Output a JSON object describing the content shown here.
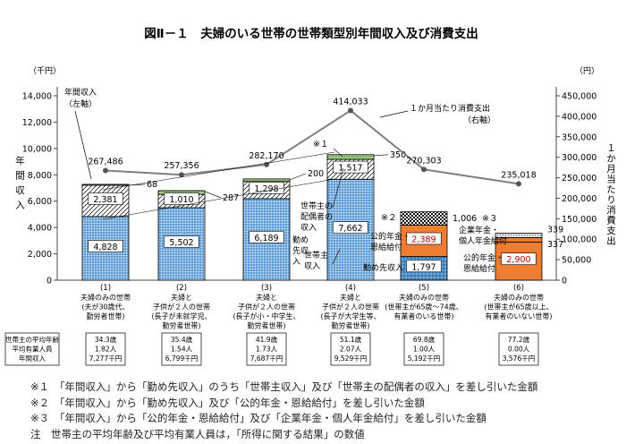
{
  "chart_data": {
    "type": "bar",
    "title": "図Ⅱ－１　夫婦のいる世帯の世帯類型別年間収入及び消費支出",
    "left_axis": {
      "unit": "（千円）",
      "label": "年間収入",
      "ticks": [
        "0",
        "2,000",
        "4,000",
        "6,000",
        "8,000",
        "10,000",
        "12,000",
        "14,000"
      ],
      "ylim": [
        0,
        14000
      ]
    },
    "right_axis": {
      "unit": "（円）",
      "label": "１か月当たり消費支出",
      "ticks": [
        "0",
        "50,000",
        "100,000",
        "150,000",
        "200,000",
        "250,000",
        "300,000",
        "350,000",
        "400,000",
        "450,000"
      ],
      "ylim": [
        0,
        450000
      ]
    },
    "categories": [
      {
        "num": "(1)",
        "lines": [
          "夫婦のみの世帯",
          "(夫が30歳代、",
          "勤労者世帯)"
        ]
      },
      {
        "num": "(2)",
        "lines": [
          "夫婦と",
          "子供が２人の世帯",
          "(長子が未就学児、",
          "勤労者世帯)"
        ]
      },
      {
        "num": "(3)",
        "lines": [
          "夫婦と",
          "子供が２人の世帯",
          "(長子が小・中学生、",
          "勤労者世帯)"
        ]
      },
      {
        "num": "(4)",
        "lines": [
          "夫婦と",
          "子供が２人の世帯",
          "(長子が大学生等、",
          "勤労者世帯)"
        ]
      },
      {
        "num": "(5)",
        "lines": [
          "夫婦のみの世帯",
          "(世帯主が65歳～74歳、",
          "有業者のいる世帯)"
        ]
      },
      {
        "num": "(6)",
        "lines": [
          "夫婦のみの世帯",
          "(世帯主が65歳以上、",
          "有業者のいない世帯)"
        ]
      }
    ],
    "working_bars": [
      {
        "head": 4828,
        "spouse": 2381,
        "other": 68,
        "head_label": "4,828",
        "spouse_label": "2,381",
        "other_label": "68"
      },
      {
        "head": 5502,
        "spouse": 1010,
        "other": 287,
        "head_label": "5,502",
        "spouse_label": "1,010",
        "other_label": "287"
      },
      {
        "head": 6189,
        "spouse": 1298,
        "other": 200,
        "head_label": "6,189",
        "spouse_label": "1,298",
        "other_label": "200"
      },
      {
        "head": 7662,
        "spouse": 1517,
        "other": 350,
        "head_label": "7,662",
        "spouse_label": "1,517",
        "other_label": "350"
      }
    ],
    "bar5": {
      "work": 1797,
      "pension": 2389,
      "other": 1006,
      "work_label": "1,797",
      "pension_label": "2,389",
      "other_label": "1,006"
    },
    "bar6": {
      "pension": 2900,
      "corp": 337,
      "other": 339,
      "pension_label": "2,900",
      "corp_label": "337",
      "other_label": "339"
    },
    "spending": {
      "values": [
        267486,
        257356,
        282170,
        414033,
        270303,
        235018
      ],
      "labels": [
        "267,486",
        "257,356",
        "282,170",
        "414,033",
        "270,303",
        "235,018"
      ]
    },
    "annotations": {
      "income_line1": "年間収入",
      "income_line2": "（左軸）",
      "spend_line1": "１か月当たり消費支出",
      "spend_line2": "（右軸）",
      "head_income": [
        "世帯主",
        "収入"
      ],
      "spouse_income": [
        "世帯主の",
        "配偶者の",
        "収入"
      ],
      "kinmu": [
        "勤め",
        "先収",
        "入"
      ],
      "pension_label5": [
        "公的年金・",
        "恩給給付"
      ],
      "work_label5": "勤め先収入",
      "corp_label6": [
        "企業年金・",
        "個人年金給付"
      ],
      "pension_label6": [
        "公的年金・",
        "恩給給付"
      ],
      "mark1": "※１",
      "mark2": "※２",
      "mark3": "※３"
    },
    "info_header": [
      "世帯主の平均年齢",
      "平均有業人員",
      "年間収入"
    ],
    "info": [
      [
        "34.3歳",
        "1.82人",
        "7,277千円"
      ],
      [
        "35.4歳",
        "1.54人",
        "6,799千円"
      ],
      [
        "41.9歳",
        "1.73人",
        "7,687千円"
      ],
      [
        "51.1歳",
        "2.07人",
        "9,529千円"
      ],
      [
        "69.8歳",
        "1.00人",
        "5,192千円"
      ],
      [
        "77.2歳",
        "0.00人",
        "3,576千円"
      ]
    ],
    "colors": {
      "blue": "#5b9bd5",
      "green": "#70ad47",
      "orange": "#ed7d31",
      "line": "#7f7f7f"
    }
  },
  "notes": [
    "※１　「年間収入」から「勤め先収入」のうち「世帯主収入」及び「世帯主の配偶者の収入」を差し引いた金額",
    "※２　「年間収入」から「勤め先収入」及び「公的年金・恩給給付」を差し引いた金額",
    "※３　「年間収入」から「公的年金・恩給給付」及び「企業年金・個人年金給付」を差し引いた金額",
    "注　世帯主の平均年齢及び平均有業人員は，「所得に関する結果」の数値"
  ]
}
